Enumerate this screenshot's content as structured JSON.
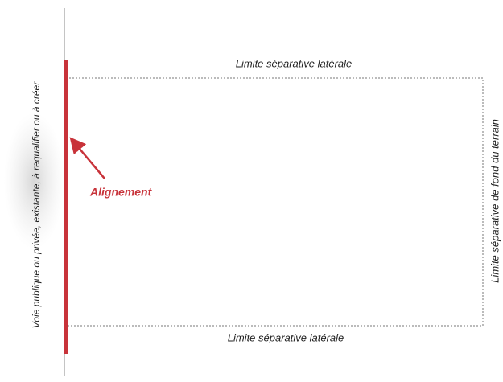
{
  "street_label": "Voie publique ou privée, existante, à requalifier ou à créer",
  "top_label": "Limite séparative latérale",
  "bottom_label": "Limite séparative latérale",
  "right_label": "Limite séparative de fond du terrain",
  "annotation": "Alignement"
}
